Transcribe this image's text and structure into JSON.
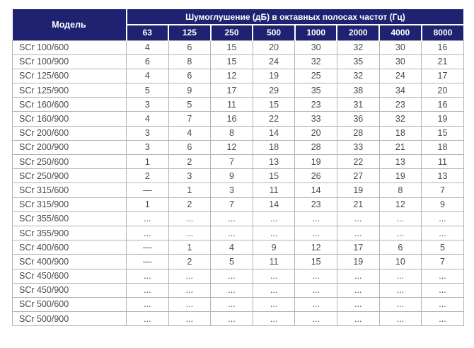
{
  "table": {
    "model_header": "Модель",
    "group_header": "Шумоглушение (дБ) в октавных полосах частот (Гц)",
    "freq_headers": [
      "63",
      "125",
      "250",
      "500",
      "1000",
      "2000",
      "4000",
      "8000"
    ],
    "rows": [
      {
        "model": "SCr 100/600",
        "values": [
          "4",
          "6",
          "15",
          "20",
          "30",
          "32",
          "30",
          "16"
        ]
      },
      {
        "model": "SCr 100/900",
        "values": [
          "6",
          "8",
          "15",
          "24",
          "32",
          "35",
          "30",
          "21"
        ]
      },
      {
        "model": "SCr 125/600",
        "values": [
          "4",
          "6",
          "12",
          "19",
          "25",
          "32",
          "24",
          "17"
        ]
      },
      {
        "model": "SCr 125/900",
        "values": [
          "5",
          "9",
          "17",
          "29",
          "35",
          "38",
          "34",
          "20"
        ]
      },
      {
        "model": "SCr 160/600",
        "values": [
          "3",
          "5",
          "11",
          "15",
          "23",
          "31",
          "23",
          "16"
        ]
      },
      {
        "model": "SCr 160/900",
        "values": [
          "4",
          "7",
          "16",
          "22",
          "33",
          "36",
          "32",
          "19"
        ]
      },
      {
        "model": "SCr 200/600",
        "values": [
          "3",
          "4",
          "8",
          "14",
          "20",
          "28",
          "18",
          "15"
        ]
      },
      {
        "model": "SCr 200/900",
        "values": [
          "3",
          "6",
          "12",
          "18",
          "28",
          "33",
          "21",
          "18"
        ]
      },
      {
        "model": "SCr 250/600",
        "values": [
          "1",
          "2",
          "7",
          "13",
          "19",
          "22",
          "13",
          "11"
        ]
      },
      {
        "model": "SCr 250/900",
        "values": [
          "2",
          "3",
          "9",
          "15",
          "26",
          "27",
          "19",
          "13"
        ]
      },
      {
        "model": "SCr 315/600",
        "values": [
          "—",
          "1",
          "3",
          "11",
          "14",
          "19",
          "8",
          "7"
        ]
      },
      {
        "model": "SCr 315/900",
        "values": [
          "1",
          "2",
          "7",
          "14",
          "23",
          "21",
          "12",
          "9"
        ]
      },
      {
        "model": "SCr 355/600",
        "values": [
          "...",
          "...",
          "...",
          "...",
          "...",
          "...",
          "...",
          "..."
        ]
      },
      {
        "model": "SCr 355/900",
        "values": [
          "...",
          "...",
          "...",
          "...",
          "...",
          "...",
          "...",
          "..."
        ]
      },
      {
        "model": "SCr 400/600",
        "values": [
          "—",
          "1",
          "4",
          "9",
          "12",
          "17",
          "6",
          "5"
        ]
      },
      {
        "model": "SCr 400/900",
        "values": [
          "—",
          "2",
          "5",
          "11",
          "15",
          "19",
          "10",
          "7"
        ]
      },
      {
        "model": "SCr 450/600",
        "values": [
          "...",
          "...",
          "...",
          "...",
          "...",
          "...",
          "...",
          "..."
        ]
      },
      {
        "model": "SCr 450/900",
        "values": [
          "...",
          "...",
          "...",
          "...",
          "...",
          "...",
          "...",
          "..."
        ]
      },
      {
        "model": "SCr 500/600",
        "values": [
          "...",
          "...",
          "...",
          "...",
          "...",
          "...",
          "...",
          "..."
        ]
      },
      {
        "model": "SCr 500/900",
        "values": [
          "...",
          "...",
          "...",
          "...",
          "...",
          "...",
          "...",
          "..."
        ]
      }
    ]
  },
  "colors": {
    "header_bg": "#1e2270",
    "header_text": "#ffffff",
    "body_text": "#4a4a4a",
    "border": "#b3b3b3"
  }
}
